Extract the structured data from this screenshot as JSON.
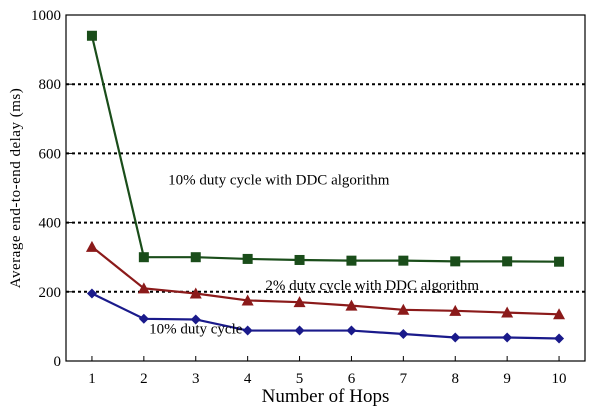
{
  "chart_data": {
    "type": "line",
    "xlabel": "Number of Hops",
    "ylabel": "Average end-to-end delay (ms)",
    "x": [
      1,
      2,
      3,
      4,
      5,
      6,
      7,
      8,
      9,
      10
    ],
    "xlim": [
      0.5,
      10.5
    ],
    "ylim": [
      0,
      1000
    ],
    "y_ticks": [
      0,
      200,
      400,
      600,
      800,
      1000
    ],
    "grid": "horizontal dotted",
    "series": [
      {
        "name": "10% duty cycle with DDC algorithm",
        "marker": "square",
        "color": "#1a4d1a",
        "values": [
          940,
          300,
          300,
          295,
          292,
          290,
          290,
          288,
          288,
          287
        ]
      },
      {
        "name": "2% duty cycle with DDC algorithm",
        "marker": "triangle",
        "color": "#8b1a1a",
        "values": [
          330,
          210,
          195,
          175,
          170,
          160,
          148,
          145,
          140,
          135
        ]
      },
      {
        "name": "10% duty cycle",
        "marker": "diamond",
        "color": "#1a1a8b",
        "values": [
          195,
          122,
          120,
          88,
          88,
          88,
          78,
          68,
          68,
          65
        ]
      }
    ],
    "annotations": [
      {
        "text": "10% duty cycle with DDC algorithm",
        "x": 4.6,
        "y": 510
      },
      {
        "text": "2% duty cycle with DDC algorithm",
        "x": 6.4,
        "y": 205
      },
      {
        "text": "10% duty cycle",
        "x": 3.0,
        "y": 80
      }
    ]
  }
}
